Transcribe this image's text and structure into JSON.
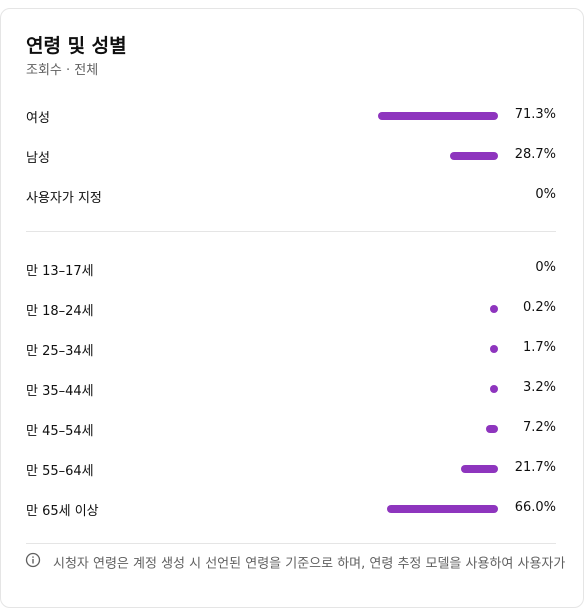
{
  "card": {
    "title": "연령 및 성별",
    "subtitle": "조회수 · 전체"
  },
  "gender": [
    {
      "label": "여성",
      "percent_text": "71.3%",
      "value": 71.3
    },
    {
      "label": "남성",
      "percent_text": "28.7%",
      "value": 28.7
    },
    {
      "label": "사용자가 지정",
      "percent_text": "0%",
      "value": 0
    }
  ],
  "age": [
    {
      "label": "만 13–17세",
      "percent_text": "0%",
      "value": 0
    },
    {
      "label": "만 18–24세",
      "percent_text": "0.2%",
      "value": 0.2
    },
    {
      "label": "만 25–34세",
      "percent_text": "1.7%",
      "value": 1.7
    },
    {
      "label": "만 35–44세",
      "percent_text": "3.2%",
      "value": 3.2
    },
    {
      "label": "만 45–54세",
      "percent_text": "7.2%",
      "value": 7.2
    },
    {
      "label": "만 55–64세",
      "percent_text": "21.7%",
      "value": 21.7
    },
    {
      "label": "만 65세 이상",
      "percent_text": "66.0%",
      "value": 66.0
    }
  ],
  "note": {
    "text": "시청자 연령은 계정 생성 시 선언된 연령을 기준으로 하며, 연령 추정 모델을 사용하여 사용자가",
    "icon": "info-icon"
  },
  "colors": {
    "bar": "#8e35be"
  }
}
